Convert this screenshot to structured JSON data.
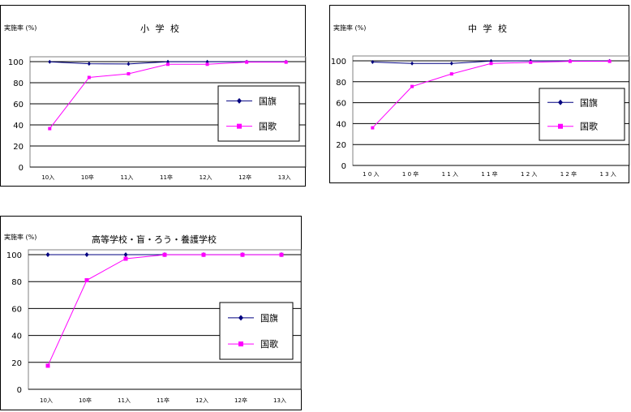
{
  "colors": {
    "flag": "#000080",
    "anthem": "#ff00ff"
  },
  "chart_data": [
    {
      "type": "line",
      "title": "小 学 校",
      "ylabel": "実施率 (%)",
      "ylim": [
        0,
        100
      ],
      "yticks": [
        "0",
        "20",
        "40",
        "60",
        "80",
        "100"
      ],
      "categories": [
        "10入",
        "10卒",
        "11入",
        "11卒",
        "12入",
        "12卒",
        "13入"
      ],
      "series": [
        {
          "name": "国旗",
          "values": [
            99.8,
            98.0,
            97.8,
            99.9,
            99.9,
            99.9,
            99.9
          ]
        },
        {
          "name": "国歌",
          "values": [
            36.5,
            85.0,
            88.5,
            97.5,
            97.5,
            99.5,
            99.5
          ]
        }
      ],
      "legend": "right"
    },
    {
      "type": "line",
      "title": "中 学 校",
      "ylabel": "実施率 (%)",
      "ylim": [
        0,
        100
      ],
      "yticks": [
        "0",
        "20",
        "40",
        "60",
        "80",
        "100"
      ],
      "categories": [
        "1 0 入",
        "1 0 卒",
        "1 1 入",
        "1 1 卒",
        "1 2 入",
        "1 2 卒",
        "1 3 入"
      ],
      "series": [
        {
          "name": "国旗",
          "values": [
            98.8,
            97.5,
            97.5,
            99.8,
            99.9,
            99.9,
            99.9
          ]
        },
        {
          "name": "国歌",
          "values": [
            36.0,
            75.5,
            87.5,
            97.5,
            98.5,
            99.5,
            99.5
          ]
        }
      ],
      "legend": "right"
    },
    {
      "type": "line",
      "title": "高等学校・盲・ろう・養護学校",
      "ylabel": "実施率 (%)",
      "ylim": [
        0,
        100
      ],
      "yticks": [
        "0",
        "20",
        "40",
        "60",
        "80",
        "100"
      ],
      "categories": [
        "10入",
        "10卒",
        "11入",
        "11卒",
        "12入",
        "12卒",
        "13入"
      ],
      "series": [
        {
          "name": "国旗",
          "values": [
            100,
            100,
            100,
            100,
            100,
            100,
            100
          ]
        },
        {
          "name": "国歌",
          "values": [
            17.5,
            81.0,
            97.0,
            99.9,
            99.9,
            99.9,
            99.9
          ]
        }
      ],
      "legend": "right"
    }
  ]
}
